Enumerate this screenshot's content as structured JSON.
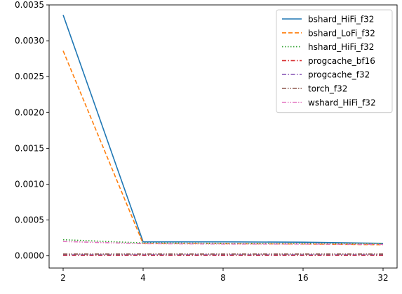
{
  "chart_data": {
    "type": "line",
    "title": "",
    "xlabel": "",
    "ylabel": "",
    "categories": [
      "2",
      "4",
      "8",
      "16",
      "32"
    ],
    "ylim": [
      -0.00017,
      0.0035
    ],
    "y_ticks": [
      "0.0000",
      "0.0005",
      "0.0010",
      "0.0015",
      "0.0020",
      "0.0025",
      "0.0030",
      "0.0035"
    ],
    "y_tick_values": [
      0,
      0.0005,
      0.001,
      0.0015,
      0.002,
      0.0025,
      0.003,
      0.0035
    ],
    "grid": false,
    "legend_position": "top-right",
    "series": [
      {
        "name": "bshard_HiFi_f32",
        "values": [
          0.00336,
          0.000195,
          0.000195,
          0.00019,
          0.000175
        ],
        "color": "#1f77b4",
        "dash": "solid"
      },
      {
        "name": "bshard_LoFi_f32",
        "values": [
          0.00286,
          0.00017,
          0.00017,
          0.000165,
          0.000155
        ],
        "color": "#ff7f0e",
        "dash": "dashed"
      },
      {
        "name": "hshard_HiFi_f32",
        "values": [
          0.000225,
          0.00018,
          0.000175,
          0.000175,
          0.000175
        ],
        "color": "#2ca02c",
        "dash": "dotted"
      },
      {
        "name": "progcache_bf16",
        "values": [
          5e-06,
          5e-06,
          5e-06,
          5e-06,
          5e-06
        ],
        "color": "#d62728",
        "dash": "dashdot"
      },
      {
        "name": "progcache_f32",
        "values": [
          1.5e-05,
          1.5e-05,
          1.5e-05,
          1.5e-05,
          1.5e-05
        ],
        "color": "#9467bd",
        "dash": "dashdot"
      },
      {
        "name": "torch_f32",
        "values": [
          2.5e-05,
          2.5e-05,
          2.5e-05,
          2.5e-05,
          2.5e-05
        ],
        "color": "#8c564b",
        "dash": "dashdotdot"
      },
      {
        "name": "wshard_HiFi_f32",
        "values": [
          0.0002,
          0.00017,
          0.000165,
          0.000165,
          0.00016
        ],
        "color": "#e377c2",
        "dash": "dashdotdot"
      }
    ]
  }
}
